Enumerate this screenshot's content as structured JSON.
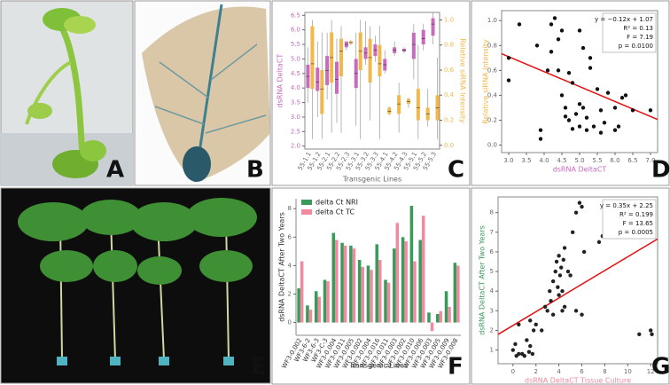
{
  "panel_labels": [
    "A",
    "B",
    "C",
    "D",
    "E",
    "F",
    "G"
  ],
  "chart_data": [
    {
      "type": "box",
      "x_label": "Transgenic Lines",
      "y_label": "dsRNA DeltaCT",
      "y2_label": "Relative siRNA Intensity",
      "categories": [
        "55-1.1",
        "55-1.2",
        "55-2.1",
        "55-2.2",
        "55-2.3",
        "55-3.1",
        "55-3.2",
        "55-3.3",
        "55-4.1",
        "55-4.2",
        "55-4.3",
        "55-5.1",
        "55-5.2",
        "55-5.3"
      ],
      "ylim": [
        1.9,
        6.6
      ],
      "yticks": [
        {
          "value": 2,
          "label": "2.0"
        },
        2.5,
        {
          "value": 3,
          "label": "3.0"
        },
        3.5,
        {
          "value": 4,
          "label": "4.0"
        },
        4.5,
        {
          "value": 5,
          "label": "5.0"
        },
        5.5,
        {
          "value": 6,
          "label": "6.0"
        },
        6.5
      ],
      "y2lim": [
        -0.03,
        1.06
      ],
      "y2ticks": [
        {
          "value": 0,
          "label": "0.0"
        },
        0.2,
        0.4,
        0.6,
        0.8,
        {
          "value": 1,
          "label": "1.0"
        }
      ],
      "series": [
        {
          "color": "#c86bbd",
          "min": [
            3.5,
            3.0,
            3.6,
            2.8,
            5.3,
            2.7,
            4.8,
            4.9,
            4.5,
            5.1,
            5.2,
            4.3,
            5.3,
            5.5
          ],
          "q1": [
            4.0,
            3.9,
            4.1,
            3.8,
            5.4,
            4.0,
            5.0,
            5.1,
            4.6,
            5.2,
            5.25,
            5.0,
            5.5,
            5.8
          ],
          "median": [
            4.4,
            4.2,
            4.6,
            4.3,
            5.5,
            4.5,
            5.2,
            5.3,
            4.8,
            5.3,
            5.3,
            5.5,
            5.7,
            6.2
          ],
          "q3": [
            4.8,
            4.7,
            5.1,
            4.9,
            5.6,
            5.0,
            5.4,
            5.5,
            5.0,
            5.4,
            5.35,
            5.9,
            6.0,
            6.4
          ],
          "max": [
            5.4,
            5.6,
            5.9,
            5.7,
            5.6,
            5.9,
            6.3,
            5.8,
            5.3,
            5.6,
            5.4,
            6.2,
            6.2,
            6.6
          ]
        },
        {
          "color": "#f2b84b",
          "axis": "y2",
          "min": [
            0.05,
            0.05,
            0.1,
            0.1,
            0.8,
            0.05,
            0.2,
            0.05,
            0.24,
            0.1,
            0.3,
            0.05,
            0.15,
            0.05
          ],
          "q1": [
            0.45,
            0.25,
            0.5,
            0.55,
            0.81,
            0.6,
            0.5,
            0.55,
            0.25,
            0.25,
            0.33,
            0.2,
            0.2,
            0.2
          ],
          "median": [
            0.65,
            0.45,
            0.7,
            0.75,
            0.82,
            0.75,
            0.7,
            0.65,
            0.27,
            0.33,
            0.35,
            0.3,
            0.25,
            0.3
          ],
          "q3": [
            0.95,
            0.6,
            0.9,
            0.85,
            0.83,
            0.9,
            0.85,
            0.8,
            0.3,
            0.4,
            0.37,
            0.45,
            0.3,
            0.4
          ],
          "max": [
            1.0,
            0.9,
            1.0,
            0.95,
            0.84,
            1.0,
            0.95,
            0.95,
            0.31,
            0.5,
            0.38,
            0.8,
            0.45,
            0.7
          ]
        }
      ]
    },
    {
      "type": "scatter",
      "x_label": "dsRNA DeltaCT",
      "y_label": "Relative siRNA Intensity",
      "xlim": [
        2.8,
        7.2
      ],
      "ylim": [
        -0.06,
        1.08
      ],
      "xticks": [
        {
          "value": 3,
          "label": "3.0"
        },
        3.5,
        {
          "value": 4,
          "label": "4.0"
        },
        4.5,
        {
          "value": 5,
          "label": "5.0"
        },
        5.5,
        {
          "value": 6,
          "label": "6.0"
        },
        6.5,
        {
          "value": 7,
          "label": "7.0"
        }
      ],
      "yticks": [
        {
          "value": 0,
          "label": "0.0"
        },
        0.2,
        0.4,
        0.6,
        0.8,
        {
          "value": 1,
          "label": "1.0"
        }
      ],
      "color": "#111111",
      "fit_color": "#e01010",
      "fit": {
        "slope": -0.12,
        "intercept": 1.07
      },
      "annotations": [
        "y = −0.12x + 1.07",
        "R² = 0.13",
        "F = 7.19",
        "p = 0.0100"
      ],
      "x": [
        3.0,
        3.0,
        3.3,
        3.8,
        3.9,
        3.9,
        4.1,
        4.2,
        4.3,
        4.2,
        4.4,
        4.4,
        4.5,
        4.5,
        4.6,
        4.6,
        4.7,
        4.7,
        4.8,
        4.8,
        4.9,
        5.0,
        5.0,
        5.1,
        5.1,
        5.2,
        5.2,
        5.3,
        5.3,
        5.4,
        5.5,
        5.6,
        5.6,
        5.7,
        5.8,
        6.0,
        6.1,
        6.2,
        6.3,
        6.5,
        6.6,
        7.0,
        6.0,
        5.0
      ],
      "values": [
        0.52,
        0.7,
        0.97,
        0.8,
        0.12,
        0.05,
        0.6,
        0.97,
        1.02,
        0.75,
        0.6,
        0.85,
        0.92,
        0.4,
        0.3,
        0.23,
        0.2,
        0.58,
        0.13,
        0.5,
        0.25,
        0.33,
        0.15,
        0.78,
        0.3,
        0.22,
        0.12,
        0.7,
        0.62,
        0.15,
        0.45,
        0.1,
        0.28,
        0.18,
        0.42,
        0.3,
        0.15,
        0.38,
        0.4,
        0.28,
        0.9,
        0.28,
        0.12,
        0.92
      ]
    },
    {
      "type": "bar",
      "x_label": "Transgenic Lines",
      "y_label": "dsRNA DeltaCT After Two Years",
      "categories": [
        "WF3-0.002",
        "WF3-6-2",
        "WF3-6-3",
        "WF3-C-3",
        "WF3-0.004",
        "WF3-0.011",
        "WF3-0.005",
        "WF3-0.002",
        "WF3-0.004",
        "WF3-0.016",
        "WF3-0.011",
        "WF3-0.003",
        "WF3-0.002",
        "WF3-0.010",
        "WF3-0.006",
        "WF3-0.003",
        "WF3-0.005",
        "WF3-0.009",
        "WF3-0.008"
      ],
      "ylim": [
        -0.9,
        8.7
      ],
      "yticks": [
        0,
        2,
        4,
        6,
        8
      ],
      "series": [
        {
          "name": "delta Ct NRI",
          "color": "#3a9a5a",
          "values": [
            2.4,
            1.2,
            2.2,
            3.0,
            6.3,
            5.6,
            5.4,
            4.4,
            4.0,
            5.5,
            3.0,
            5.2,
            6.0,
            8.2,
            5.8,
            0.7,
            0.6,
            2.2,
            4.2
          ]
        },
        {
          "name": "delta Ct TC",
          "color": "#f08aa0",
          "values": [
            4.3,
            0.9,
            1.8,
            2.9,
            5.8,
            5.4,
            5.2,
            3.9,
            3.7,
            4.4,
            2.8,
            7.0,
            5.7,
            4.3,
            7.5,
            -0.6,
            0.8,
            1.1,
            4.0
          ]
        }
      ]
    },
    {
      "type": "scatter",
      "x_label": "dsRNA DeltaCT Tissue Culture",
      "y_label": "dsRNA DeltaCT After Two Years",
      "xlim": [
        -1.3,
        12.6
      ],
      "ylim": [
        0.3,
        8.8
      ],
      "xticks": [
        0,
        2,
        4,
        6,
        8,
        10,
        12
      ],
      "yticks": [
        1,
        2,
        3,
        4,
        5,
        6,
        7,
        8
      ],
      "color": "#222222",
      "fit_color": "#e01010",
      "fit": {
        "slope": 0.35,
        "intercept": 2.25
      },
      "annotations": [
        "y = 0.35x + 2.25",
        "R² = 0.199",
        "F = 13.65",
        "p = 0.0005"
      ],
      "x": [
        0.0,
        0.3,
        0.5,
        0.8,
        1.0,
        1.2,
        1.4,
        1.5,
        1.7,
        1.8,
        2.0,
        1.5,
        2.5,
        2.8,
        3.0,
        3.2,
        3.3,
        3.5,
        3.5,
        3.7,
        3.8,
        3.9,
        4.0,
        4.0,
        4.1,
        4.2,
        4.3,
        4.4,
        4.5,
        4.5,
        4.8,
        5.0,
        5.2,
        5.5,
        5.8,
        6.0,
        5.5,
        6.0,
        6.2,
        7.5,
        7.8,
        4.3,
        0.5,
        11.0,
        12.0,
        12.1,
        0.2
      ],
      "values": [
        1.0,
        0.7,
        0.8,
        0.8,
        0.7,
        1.5,
        0.9,
        1.2,
        0.8,
        2.0,
        2.3,
        2.5,
        2.0,
        3.2,
        3.0,
        4.0,
        3.5,
        4.5,
        2.8,
        5.0,
        5.5,
        4.2,
        5.8,
        3.8,
        4.8,
        5.2,
        4.0,
        5.6,
        3.2,
        6.2,
        5.0,
        4.8,
        7.0,
        8.0,
        8.5,
        8.3,
        3.0,
        2.8,
        6.0,
        6.5,
        6.8,
        3.0,
        2.3,
        1.8,
        2.0,
        1.8,
        1.3
      ]
    }
  ]
}
